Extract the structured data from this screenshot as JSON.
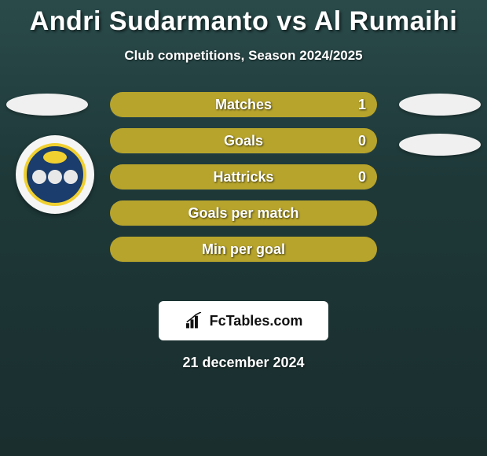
{
  "title": "Andri Sudarmanto vs Al Rumaihi",
  "subtitle": "Club competitions, Season 2024/2025",
  "date": "21 december 2024",
  "brand": "FcTables.com",
  "bar_colors": {
    "fill": "#b6a42c",
    "track": "#3a4040",
    "text": "#ffffff"
  },
  "stats": [
    {
      "label": "Matches",
      "value_right": "1",
      "fill_percent": 100
    },
    {
      "label": "Goals",
      "value_right": "0",
      "fill_percent": 100
    },
    {
      "label": "Hattricks",
      "value_right": "0",
      "fill_percent": 100
    },
    {
      "label": "Goals per match",
      "value_right": "",
      "fill_percent": 100
    },
    {
      "label": "Min per goal",
      "value_right": "",
      "fill_percent": 100
    }
  ],
  "badge": {
    "bg": "#1a3d6d",
    "ring": "#f0d030",
    "accent": "#f0d030"
  }
}
